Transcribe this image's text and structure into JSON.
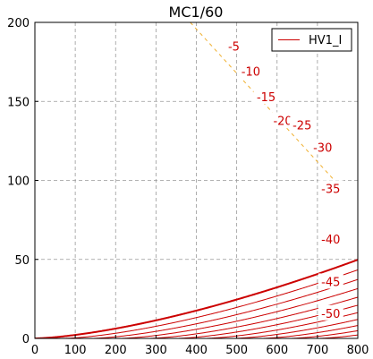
{
  "chart_data": {
    "type": "line",
    "title": "MC1/60",
    "xlabel": "",
    "ylabel": "",
    "xlim": [
      0,
      800
    ],
    "ylim": [
      0,
      200
    ],
    "x_ticks": [
      "0",
      "100",
      "200",
      "300",
      "400",
      "500",
      "600",
      "700",
      "800"
    ],
    "y_ticks": [
      "0",
      "50",
      "100",
      "150",
      "200"
    ],
    "grid": true,
    "legend": {
      "placement": "top-right",
      "entries": [
        "HV1_I"
      ]
    },
    "colors": {
      "curves": "#cc0000",
      "load_line": "#f0b030",
      "grid": "#999999"
    },
    "perveance": 0.0022,
    "mu": 14,
    "series": [
      {
        "grid_voltage": 0,
        "label": "",
        "bold": true
      },
      {
        "grid_voltage": -5,
        "label": "-5"
      },
      {
        "grid_voltage": -10,
        "label": "-10"
      },
      {
        "grid_voltage": -15,
        "label": "-15"
      },
      {
        "grid_voltage": -20,
        "label": "-20"
      },
      {
        "grid_voltage": -25,
        "label": "-25"
      },
      {
        "grid_voltage": -30,
        "label": "-30"
      },
      {
        "grid_voltage": -35,
        "label": "-35"
      },
      {
        "grid_voltage": -40,
        "label": "-40"
      },
      {
        "grid_voltage": -45,
        "label": "-45"
      },
      {
        "grid_voltage": -50,
        "label": "-50"
      }
    ],
    "label_positions": [
      {
        "label": "-5",
        "x": 493,
        "y": 185
      },
      {
        "label": "-10",
        "x": 535,
        "y": 169
      },
      {
        "label": "-15",
        "x": 573,
        "y": 153
      },
      {
        "label": "-20",
        "x": 614,
        "y": 138
      },
      {
        "label": "-25",
        "x": 662,
        "y": 135
      },
      {
        "label": "-30",
        "x": 713,
        "y": 121
      },
      {
        "label": "-35",
        "x": 733,
        "y": 95
      },
      {
        "label": "-40",
        "x": 733,
        "y": 63
      },
      {
        "label": "-45",
        "x": 733,
        "y": 36
      },
      {
        "label": "-50",
        "x": 733,
        "y": 16
      }
    ],
    "load_line": {
      "style": "dashed",
      "points": [
        [
          385,
          200
        ],
        [
          760,
          95
        ]
      ]
    }
  }
}
